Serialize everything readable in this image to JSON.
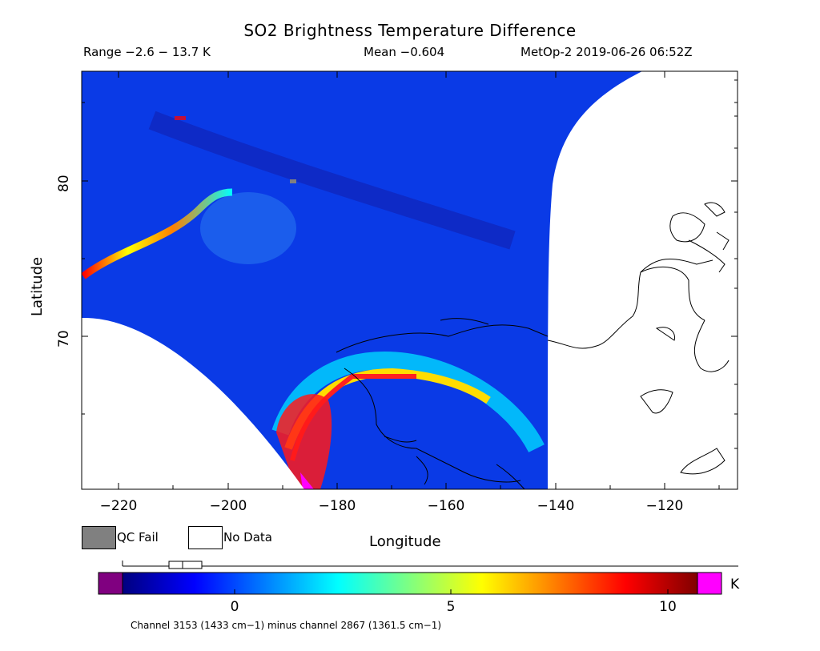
{
  "title": "SO2 Brightness Temperature Difference",
  "header": {
    "range": "Range −2.6 − 13.7 K",
    "mean": "Mean −0.604",
    "satellite_time": "MetOp-2 2019-06-26 06:52Z"
  },
  "axes": {
    "xlabel": "Longitude",
    "ylabel": "Latitude",
    "xticks": [
      "−220",
      "−200",
      "−180",
      "−160",
      "−140",
      "−120"
    ],
    "xtick_values": [
      -220,
      -200,
      -180,
      -160,
      -140,
      -120
    ],
    "yticks": [
      "80",
      "70"
    ],
    "ytick_values": [
      80,
      70
    ],
    "xlim": [
      -226.5,
      -106.5
    ],
    "ylim": [
      60.5,
      86.5
    ]
  },
  "legend": {
    "qc_fail": "QC Fail",
    "no_data": "No Data",
    "qc_color": "#808080",
    "no_data_color": "#ffffff"
  },
  "colorbar": {
    "unit": "K",
    "ticks": [
      "0",
      "5",
      "10"
    ],
    "tick_values": [
      0,
      5,
      10
    ],
    "vmin": -1.4,
    "vmax": 10.6,
    "under_color": "#800080",
    "over_color": "#ff00ff",
    "colormap": [
      "#00007f",
      "#0000ff",
      "#0080ff",
      "#00ffff",
      "#80ff80",
      "#ffff00",
      "#ff8000",
      "#ff0000",
      "#800000"
    ]
  },
  "footnote": "Channel 3153 (1433 cm−1) minus channel 2867 (1361.5 cm−1)"
}
